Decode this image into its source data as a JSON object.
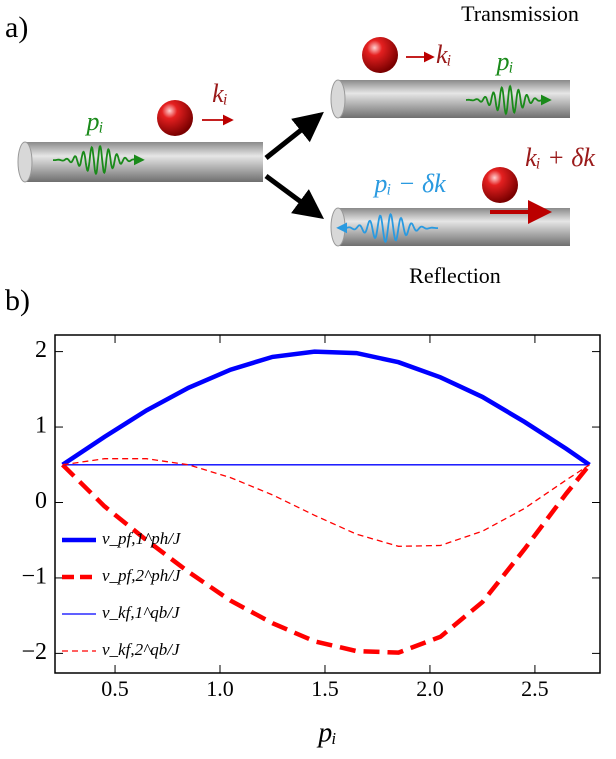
{
  "panel_a": {
    "label": "a)",
    "transmission": "Transmission",
    "reflection": "Reflection",
    "left_p": "pᵢ",
    "left_k": "kᵢ",
    "trans_k": "kᵢ",
    "trans_p": "pᵢ",
    "refl_p": "pᵢ − δk",
    "refl_k": "kᵢ + δk"
  },
  "panel_b": {
    "label": "b)"
  },
  "chart_data": {
    "type": "line",
    "xlabel": "pᵢ",
    "x": [
      0.25,
      0.45,
      0.65,
      0.85,
      1.05,
      1.25,
      1.45,
      1.65,
      1.85,
      2.05,
      2.25,
      2.45,
      2.65,
      2.76
    ],
    "series": [
      {
        "name": "v_pf,1^ph/J",
        "color": "#0000ff",
        "width": 4.5,
        "dashed": false,
        "values": [
          0.5,
          0.87,
          1.22,
          1.52,
          1.76,
          1.93,
          2.0,
          1.98,
          1.86,
          1.66,
          1.4,
          1.07,
          0.71,
          0.5
        ]
      },
      {
        "name": "v_pf,2^ph/J",
        "color": "#ff0000",
        "width": 4.5,
        "dashed": true,
        "values": [
          0.5,
          -0.05,
          -0.5,
          -0.92,
          -1.3,
          -1.6,
          -1.84,
          -1.97,
          -1.99,
          -1.78,
          -1.32,
          -0.62,
          0.12,
          0.5
        ]
      },
      {
        "name": "v_kf,1^qb/J",
        "color": "#0000ff",
        "width": 1.3,
        "dashed": false,
        "values": [
          0.5,
          0.5,
          0.5,
          0.5,
          0.5,
          0.5,
          0.5,
          0.5,
          0.5,
          0.5,
          0.5,
          0.5,
          0.5,
          0.5
        ]
      },
      {
        "name": "v_kf,2^qb/J",
        "color": "#ff0000",
        "width": 1.3,
        "dashed": true,
        "values": [
          0.5,
          0.58,
          0.58,
          0.5,
          0.33,
          0.1,
          -0.17,
          -0.42,
          -0.58,
          -0.57,
          -0.38,
          -0.08,
          0.3,
          0.5
        ]
      }
    ],
    "xlim": [
      0.214,
      2.81
    ],
    "ylim": [
      -2.26,
      2.22
    ],
    "xticks": [
      0.5,
      {
        "value": 1,
        "label": "1.0"
      },
      1.5,
      {
        "value": 2,
        "label": "2.0"
      },
      2.5
    ],
    "yticks": [
      {
        "value": -2,
        "label": "−2"
      },
      {
        "value": -1,
        "label": "−1"
      },
      0,
      1,
      2
    ],
    "legend": "lower left"
  }
}
